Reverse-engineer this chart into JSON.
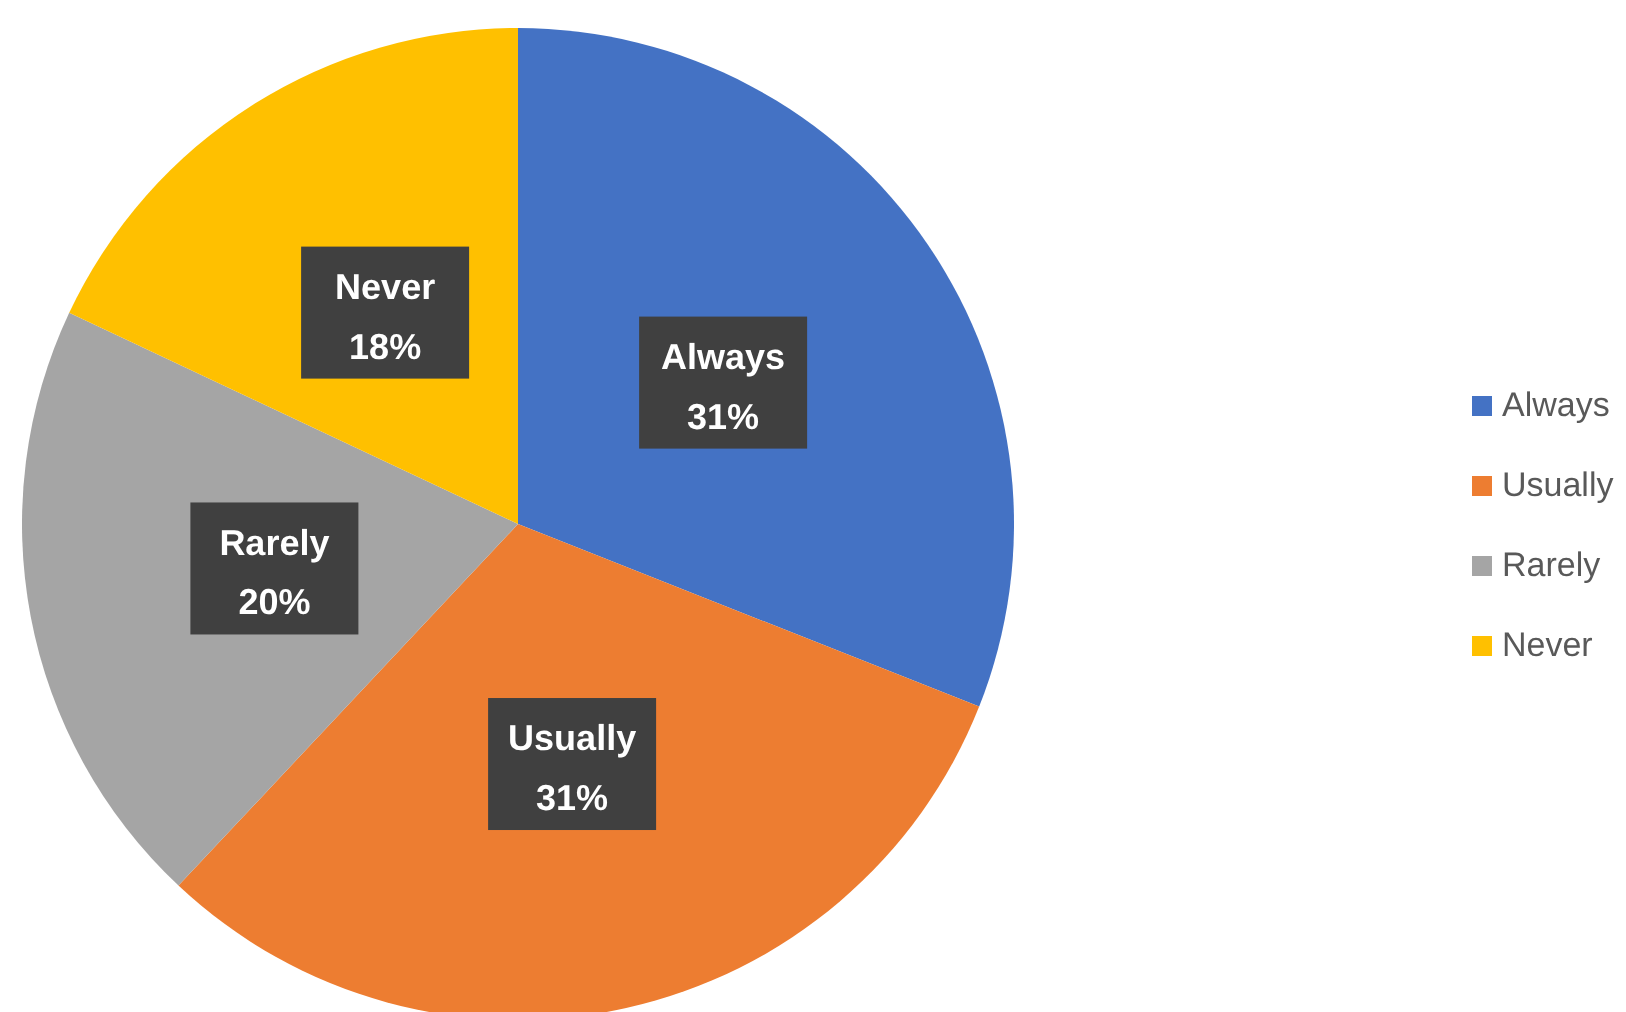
{
  "chart_data": {
    "type": "pie",
    "categories": [
      "Always",
      "Usually",
      "Rarely",
      "Never"
    ],
    "values": [
      31,
      31,
      20,
      18
    ],
    "value_labels": [
      "31%",
      "31%",
      "20%",
      "18%"
    ],
    "colors": [
      "#4472c4",
      "#ed7d31",
      "#a5a5a5",
      "#ffc000"
    ],
    "legend": "right"
  }
}
